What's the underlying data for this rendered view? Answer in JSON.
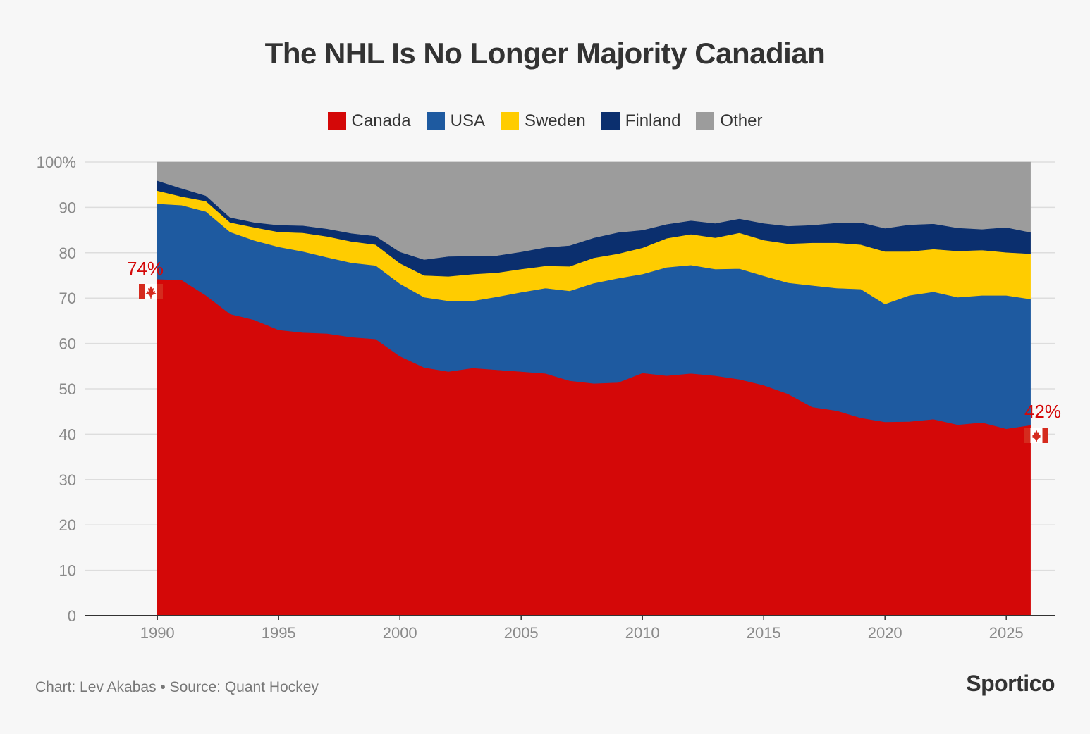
{
  "title": "The NHL Is No Longer Majority Canadian",
  "footer": {
    "credit": "Chart: Lev Akabas • Source: Quant Hockey",
    "brand": "Sportico"
  },
  "annotations": {
    "start_label": "74%",
    "end_label": "42%",
    "flag_icon": "canada-flag-icon"
  },
  "colors": {
    "Canada": "#d40808",
    "USA": "#1e5aa0",
    "Sweden": "#ffcc00",
    "Finland": "#0b2f6e",
    "Other": "#9c9c9c"
  },
  "chart_data": {
    "type": "area",
    "stacked": true,
    "xlim": [
      1987,
      2027
    ],
    "ylim": [
      0,
      100
    ],
    "x_ticks": [
      1990,
      1995,
      2000,
      2005,
      2010,
      2015,
      2020,
      2025
    ],
    "y_ticks": [
      0,
      10,
      20,
      30,
      40,
      50,
      60,
      70,
      80,
      90,
      100
    ],
    "y_tick_labels": [
      "0",
      "10",
      "20",
      "30",
      "40",
      "50",
      "60",
      "70",
      "80",
      "90",
      "100%"
    ],
    "legend_position": "top-center",
    "grid": true,
    "x": [
      1990,
      1991,
      1992,
      1993,
      1994,
      1995,
      1996,
      1997,
      1998,
      1999,
      2000,
      2001,
      2002,
      2003,
      2004,
      2005,
      2006,
      2007,
      2008,
      2009,
      2010,
      2011,
      2012,
      2013,
      2014,
      2015,
      2016,
      2017,
      2018,
      2019,
      2020,
      2021,
      2022,
      2023,
      2024,
      2025,
      2026
    ],
    "series": [
      {
        "name": "Canada",
        "values": [
          74.2,
          74.0,
          70.6,
          66.5,
          65.2,
          63.0,
          62.4,
          62.2,
          61.4,
          61.0,
          57.2,
          54.7,
          53.8,
          54.6,
          54.2,
          53.8,
          53.4,
          51.8,
          51.2,
          51.4,
          53.5,
          52.9,
          53.4,
          52.9,
          52.1,
          50.8,
          48.9,
          46.0,
          45.2,
          43.6,
          42.7,
          42.8,
          43.3,
          42.1,
          42.6,
          41.2,
          42.0
        ]
      },
      {
        "name": "USA",
        "values": [
          16.6,
          16.5,
          18.5,
          18.1,
          17.5,
          18.3,
          17.9,
          16.8,
          16.4,
          16.2,
          16.0,
          15.5,
          15.6,
          14.8,
          16.1,
          17.5,
          18.8,
          19.8,
          22.1,
          23.0,
          21.8,
          23.9,
          23.9,
          23.5,
          24.4,
          24.1,
          24.5,
          26.8,
          27.0,
          28.4,
          26.0,
          27.8,
          28.1,
          28.1,
          28.0,
          29.4,
          27.8
        ]
      },
      {
        "name": "Sweden",
        "values": [
          2.9,
          1.9,
          2.3,
          2.1,
          2.9,
          3.3,
          4.1,
          4.6,
          4.7,
          4.6,
          4.5,
          4.8,
          5.4,
          5.9,
          5.3,
          5.1,
          4.9,
          5.4,
          5.6,
          5.4,
          5.8,
          6.4,
          6.8,
          6.9,
          7.9,
          7.9,
          8.6,
          9.4,
          10.0,
          9.8,
          11.6,
          9.7,
          9.4,
          10.2,
          10.0,
          9.5,
          10.0
        ]
      },
      {
        "name": "Finland",
        "values": [
          2.2,
          1.8,
          1.2,
          1.1,
          1.1,
          1.5,
          1.6,
          1.7,
          1.8,
          1.9,
          2.5,
          3.5,
          4.4,
          4.0,
          3.8,
          3.8,
          4.1,
          4.6,
          4.4,
          4.7,
          3.9,
          3.1,
          3.0,
          3.2,
          3.1,
          3.7,
          3.9,
          3.9,
          4.4,
          4.9,
          5.1,
          5.9,
          5.6,
          5.1,
          4.6,
          5.5,
          4.7
        ]
      },
      {
        "name": "Other",
        "values": [
          4.1,
          5.8,
          7.4,
          12.2,
          13.3,
          13.9,
          14.0,
          14.7,
          15.7,
          16.3,
          19.8,
          21.5,
          20.8,
          20.7,
          20.6,
          19.8,
          18.8,
          18.4,
          16.7,
          15.5,
          15.0,
          13.7,
          12.9,
          13.5,
          12.5,
          13.5,
          14.1,
          13.9,
          13.4,
          13.3,
          14.6,
          13.8,
          13.6,
          14.5,
          14.8,
          14.4,
          15.5
        ]
      }
    ]
  }
}
